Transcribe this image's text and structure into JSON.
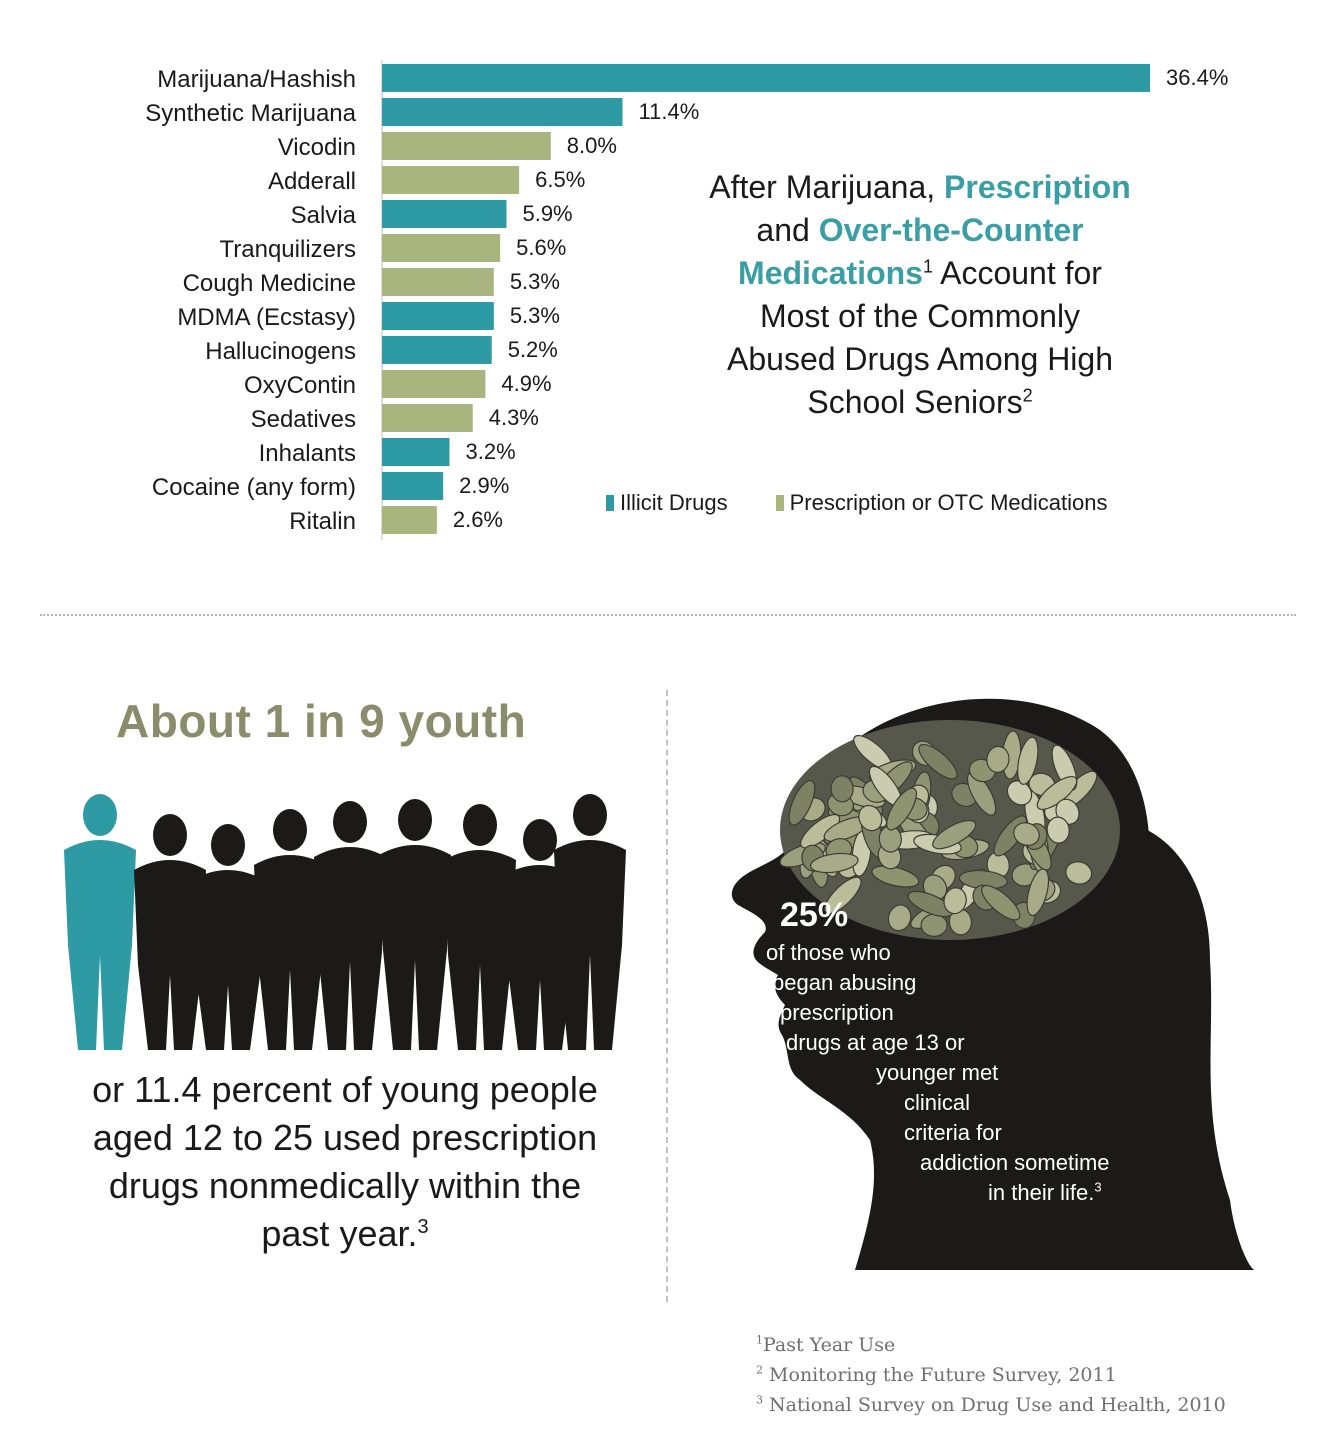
{
  "chart_data": {
    "type": "bar",
    "orientation": "horizontal",
    "categories": [
      "Marijuana/Hashish",
      "Synthetic Marijuana",
      "Vicodin",
      "Adderall",
      "Salvia",
      "Tranquilizers",
      "Cough Medicine",
      "MDMA (Ecstasy)",
      "Hallucinogens",
      "OxyContin",
      "Sedatives",
      "Inhalants",
      "Cocaine (any form)",
      "Ritalin"
    ],
    "values": [
      36.4,
      11.4,
      8.0,
      6.5,
      5.9,
      5.6,
      5.3,
      5.3,
      5.2,
      4.9,
      4.3,
      3.2,
      2.9,
      2.6
    ],
    "value_labels": [
      "36.4%",
      "11.4%",
      "8.0%",
      "6.5%",
      "5.9%",
      "5.6%",
      "5.3%",
      "5.3%",
      "5.2%",
      "4.9%",
      "4.3%",
      "3.2%",
      "2.9%",
      "2.6%"
    ],
    "groups": [
      "illicit",
      "illicit",
      "rx",
      "rx",
      "illicit",
      "rx",
      "rx",
      "illicit",
      "illicit",
      "rx",
      "rx",
      "illicit",
      "illicit",
      "rx"
    ],
    "xlim": [
      0,
      36.4
    ],
    "legend": [
      {
        "key": "illicit",
        "label": "Illicit Drugs",
        "color": "#2e9aa3"
      },
      {
        "key": "rx",
        "label": "Prescription or OTC Medications",
        "color": "#a9b57e"
      }
    ]
  },
  "headline": {
    "line1_plain": "After Marijuana,",
    "line1_hl": "Prescription",
    "line2_plain": "and",
    "line2_hl": "Over-the-Counter",
    "line3_hl": "Medications",
    "line3_sup": "1",
    "line3_plain": "Account for",
    "line4": "Most of the Commonly",
    "line5": "Abused Drugs Among High",
    "line6": "School Seniors",
    "line6_sup": "2"
  },
  "youth": {
    "title": "About 1 in 9 youth",
    "line1": "or 11.4 percent of young people",
    "line2": "aged 12 to 25 used prescription",
    "line3": "drugs nonmedically within the",
    "line4": "past year.",
    "line4_sup": "3",
    "figure_count": 9,
    "highlighted_figures": 1
  },
  "head": {
    "percent": "25%",
    "lines": [
      "of those who",
      "began abusing",
      "prescription",
      "drugs at age 13 or",
      "younger met",
      "clinical",
      "criteria for",
      "addiction sometime",
      "in their life."
    ],
    "last_sup": "3"
  },
  "footnotes": [
    {
      "sup": "1",
      "text": "Past Year Use"
    },
    {
      "sup": "2",
      "text": "Monitoring the Future Survey, 2011"
    },
    {
      "sup": "3",
      "text": "National Survey on Drug Use and Health, 2010"
    }
  ],
  "colors": {
    "accent_teal": "#2e9aa3",
    "rx_green": "#a9b57e",
    "title_olive": "#8a8c6b",
    "silhouette": "#1c1a19"
  }
}
